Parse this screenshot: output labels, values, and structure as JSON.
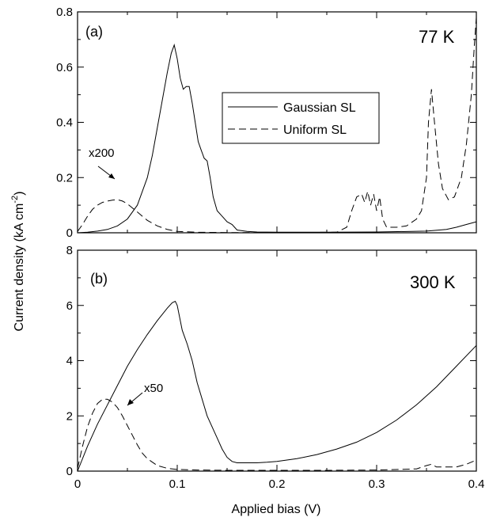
{
  "chart_data": [
    {
      "type": "line",
      "panel_label": "(a)",
      "temperature_label": "77 K",
      "xlim": [
        0,
        0.4
      ],
      "ylim": [
        0,
        0.8
      ],
      "x_ticks": [
        "0",
        "0.1",
        "0.2",
        "0.3",
        "0.4"
      ],
      "y_ticks": [
        "0",
        "0.2",
        "0.4",
        "0.6",
        "0.8"
      ],
      "legend_position": "upper-right",
      "annotation": {
        "text": "x200",
        "points_to_series": "Uniform SL",
        "x": 0.04,
        "y": 0.12
      },
      "series": [
        {
          "name": "Gaussian SL",
          "style": "solid",
          "x": [
            0,
            0.01,
            0.02,
            0.03,
            0.04,
            0.05,
            0.06,
            0.07,
            0.075,
            0.08,
            0.085,
            0.09,
            0.094,
            0.097,
            0.1,
            0.103,
            0.106,
            0.109,
            0.112,
            0.115,
            0.118,
            0.121,
            0.124,
            0.127,
            0.13,
            0.133,
            0.136,
            0.14,
            0.145,
            0.15,
            0.155,
            0.16,
            0.17,
            0.18,
            0.2,
            0.25,
            0.3,
            0.35,
            0.37,
            0.38,
            0.39,
            0.4
          ],
          "y": [
            0,
            0.002,
            0.006,
            0.012,
            0.025,
            0.05,
            0.1,
            0.2,
            0.28,
            0.38,
            0.48,
            0.58,
            0.65,
            0.68,
            0.63,
            0.56,
            0.52,
            0.53,
            0.53,
            0.47,
            0.4,
            0.33,
            0.3,
            0.27,
            0.26,
            0.2,
            0.13,
            0.08,
            0.06,
            0.04,
            0.03,
            0.01,
            0.005,
            0.003,
            0.002,
            0.002,
            0.003,
            0.006,
            0.012,
            0.02,
            0.03,
            0.04
          ]
        },
        {
          "name": "Uniform SL",
          "style": "dashed",
          "x": [
            0,
            0.005,
            0.01,
            0.015,
            0.02,
            0.025,
            0.03,
            0.035,
            0.04,
            0.045,
            0.05,
            0.055,
            0.06,
            0.065,
            0.07,
            0.08,
            0.09,
            0.1,
            0.12,
            0.15,
            0.2,
            0.26,
            0.27,
            0.275,
            0.28,
            0.285,
            0.288,
            0.291,
            0.294,
            0.297,
            0.3,
            0.303,
            0.306,
            0.31,
            0.32,
            0.33,
            0.34,
            0.345,
            0.35,
            0.352,
            0.355,
            0.358,
            0.362,
            0.366,
            0.372,
            0.378,
            0.385,
            0.39,
            0.395,
            0.398,
            0.4
          ],
          "y": [
            0.005,
            0.03,
            0.06,
            0.085,
            0.1,
            0.11,
            0.115,
            0.118,
            0.12,
            0.115,
            0.105,
            0.09,
            0.075,
            0.06,
            0.045,
            0.025,
            0.012,
            0.005,
            0.002,
            0.001,
            0.001,
            0.002,
            0.02,
            0.08,
            0.13,
            0.14,
            0.11,
            0.15,
            0.1,
            0.14,
            0.08,
            0.13,
            0.05,
            0.02,
            0.02,
            0.025,
            0.05,
            0.08,
            0.2,
            0.4,
            0.52,
            0.4,
            0.25,
            0.16,
            0.12,
            0.13,
            0.2,
            0.32,
            0.5,
            0.68,
            0.78
          ]
        }
      ]
    },
    {
      "type": "line",
      "panel_label": "(b)",
      "temperature_label": "300 K",
      "xlim": [
        0,
        0.4
      ],
      "ylim": [
        0,
        8
      ],
      "x_ticks": [
        "0",
        "0.1",
        "0.2",
        "0.3",
        "0.4"
      ],
      "y_ticks": [
        "0",
        "2",
        "4",
        "6",
        "8"
      ],
      "annotation": {
        "text": "x50",
        "points_to_series": "Uniform SL",
        "x": 0.03,
        "y": 2.6
      },
      "series": [
        {
          "name": "Gaussian SL",
          "style": "solid",
          "x": [
            0,
            0.01,
            0.02,
            0.03,
            0.04,
            0.05,
            0.06,
            0.07,
            0.08,
            0.09,
            0.095,
            0.098,
            0.1,
            0.105,
            0.11,
            0.115,
            0.12,
            0.125,
            0.13,
            0.135,
            0.14,
            0.145,
            0.15,
            0.155,
            0.16,
            0.17,
            0.18,
            0.19,
            0.2,
            0.22,
            0.24,
            0.26,
            0.28,
            0.3,
            0.32,
            0.34,
            0.36,
            0.38,
            0.4
          ],
          "y": [
            0,
            0.9,
            1.7,
            2.4,
            3.1,
            3.8,
            4.4,
            4.95,
            5.45,
            5.9,
            6.1,
            6.15,
            6.0,
            5.1,
            4.6,
            4.0,
            3.2,
            2.6,
            2.0,
            1.6,
            1.2,
            0.8,
            0.5,
            0.35,
            0.3,
            0.3,
            0.3,
            0.32,
            0.35,
            0.45,
            0.6,
            0.8,
            1.05,
            1.4,
            1.85,
            2.4,
            3.05,
            3.8,
            4.55
          ]
        },
        {
          "name": "Uniform SL",
          "style": "dashed",
          "x": [
            0,
            0.005,
            0.01,
            0.015,
            0.02,
            0.025,
            0.03,
            0.035,
            0.04,
            0.045,
            0.05,
            0.055,
            0.06,
            0.065,
            0.07,
            0.08,
            0.09,
            0.1,
            0.12,
            0.15,
            0.2,
            0.25,
            0.3,
            0.34,
            0.35,
            0.355,
            0.36,
            0.38,
            0.39,
            0.4
          ],
          "y": [
            0.1,
            0.9,
            1.6,
            2.1,
            2.45,
            2.6,
            2.6,
            2.5,
            2.3,
            2.0,
            1.65,
            1.3,
            0.95,
            0.65,
            0.45,
            0.2,
            0.1,
            0.06,
            0.04,
            0.03,
            0.03,
            0.03,
            0.04,
            0.08,
            0.2,
            0.25,
            0.15,
            0.15,
            0.25,
            0.4
          ]
        }
      ]
    }
  ],
  "legend": {
    "items": [
      {
        "label": "Gaussian SL",
        "style": "solid"
      },
      {
        "label": "Uniform SL",
        "style": "dashed"
      }
    ]
  },
  "axes": {
    "x_title": "Applied bias (V)",
    "y_title_main": "Current density (kA cm",
    "y_title_sup": "-2",
    "y_title_close": ")"
  }
}
